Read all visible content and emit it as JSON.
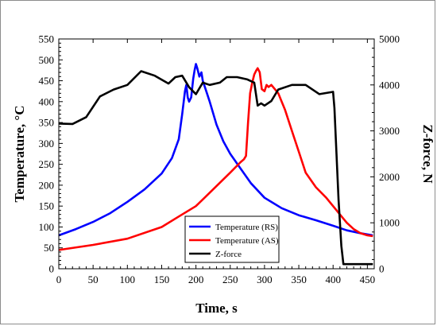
{
  "chart_data": {
    "type": "line",
    "title": "",
    "xlabel": "Time, s",
    "ylabel_left": "Temperature, °C",
    "ylabel_right": "Z-force, N",
    "xlim": [
      0,
      460
    ],
    "ylim_left": [
      0,
      550
    ],
    "ylim_right": [
      0,
      5000
    ],
    "x_ticks": [
      0,
      50,
      100,
      150,
      200,
      250,
      300,
      350,
      400,
      450
    ],
    "y_left_ticks": [
      0,
      50,
      100,
      150,
      200,
      250,
      300,
      350,
      400,
      450,
      500,
      550
    ],
    "y_right_ticks": [
      0,
      1000,
      2000,
      3000,
      4000,
      5000
    ],
    "grid": false,
    "legend_position": "bottom-center",
    "series": [
      {
        "name": "Temperature (RS)",
        "axis": "left",
        "color": "#0000ff",
        "points": [
          [
            0,
            80
          ],
          [
            25,
            95
          ],
          [
            50,
            112
          ],
          [
            75,
            133
          ],
          [
            100,
            160
          ],
          [
            125,
            190
          ],
          [
            150,
            228
          ],
          [
            165,
            265
          ],
          [
            175,
            310
          ],
          [
            180,
            370
          ],
          [
            184,
            425
          ],
          [
            186,
            440
          ],
          [
            188,
            410
          ],
          [
            190,
            400
          ],
          [
            193,
            410
          ],
          [
            196,
            455
          ],
          [
            198,
            475
          ],
          [
            200,
            490
          ],
          [
            202,
            480
          ],
          [
            205,
            460
          ],
          [
            208,
            470
          ],
          [
            210,
            450
          ],
          [
            215,
            425
          ],
          [
            220,
            400
          ],
          [
            230,
            345
          ],
          [
            240,
            305
          ],
          [
            250,
            275
          ],
          [
            265,
            240
          ],
          [
            280,
            205
          ],
          [
            300,
            170
          ],
          [
            325,
            145
          ],
          [
            350,
            128
          ],
          [
            375,
            116
          ],
          [
            400,
            103
          ],
          [
            420,
            92
          ],
          [
            440,
            85
          ],
          [
            458,
            80
          ]
        ]
      },
      {
        "name": "Temperature (AS)",
        "axis": "left",
        "color": "#ff0000",
        "points": [
          [
            0,
            45
          ],
          [
            50,
            57
          ],
          [
            100,
            72
          ],
          [
            150,
            100
          ],
          [
            175,
            125
          ],
          [
            200,
            150
          ],
          [
            225,
            190
          ],
          [
            250,
            230
          ],
          [
            265,
            255
          ],
          [
            270,
            262
          ],
          [
            273,
            270
          ],
          [
            276,
            350
          ],
          [
            279,
            420
          ],
          [
            282,
            445
          ],
          [
            285,
            465
          ],
          [
            288,
            475
          ],
          [
            290,
            480
          ],
          [
            293,
            470
          ],
          [
            296,
            430
          ],
          [
            300,
            425
          ],
          [
            303,
            440
          ],
          [
            306,
            435
          ],
          [
            310,
            440
          ],
          [
            315,
            430
          ],
          [
            320,
            420
          ],
          [
            330,
            380
          ],
          [
            340,
            330
          ],
          [
            350,
            280
          ],
          [
            360,
            230
          ],
          [
            375,
            195
          ],
          [
            390,
            170
          ],
          [
            400,
            150
          ],
          [
            410,
            130
          ],
          [
            420,
            110
          ],
          [
            430,
            95
          ],
          [
            440,
            85
          ],
          [
            450,
            80
          ],
          [
            458,
            78
          ]
        ]
      },
      {
        "name": "Z-force",
        "axis": "right",
        "color": "#000000",
        "points": [
          [
            0,
            3160
          ],
          [
            20,
            3150
          ],
          [
            40,
            3300
          ],
          [
            60,
            3750
          ],
          [
            80,
            3900
          ],
          [
            100,
            4000
          ],
          [
            120,
            4300
          ],
          [
            140,
            4200
          ],
          [
            160,
            4030
          ],
          [
            170,
            4170
          ],
          [
            180,
            4200
          ],
          [
            190,
            3950
          ],
          [
            200,
            3800
          ],
          [
            210,
            4050
          ],
          [
            220,
            4000
          ],
          [
            235,
            4050
          ],
          [
            245,
            4170
          ],
          [
            260,
            4170
          ],
          [
            275,
            4120
          ],
          [
            285,
            4050
          ],
          [
            290,
            3550
          ],
          [
            295,
            3600
          ],
          [
            300,
            3550
          ],
          [
            310,
            3650
          ],
          [
            320,
            3900
          ],
          [
            340,
            4000
          ],
          [
            360,
            4000
          ],
          [
            380,
            3800
          ],
          [
            400,
            3850
          ],
          [
            402,
            3500
          ],
          [
            405,
            2500
          ],
          [
            408,
            1500
          ],
          [
            412,
            500
          ],
          [
            415,
            100
          ],
          [
            435,
            100
          ],
          [
            458,
            100
          ]
        ]
      }
    ]
  }
}
